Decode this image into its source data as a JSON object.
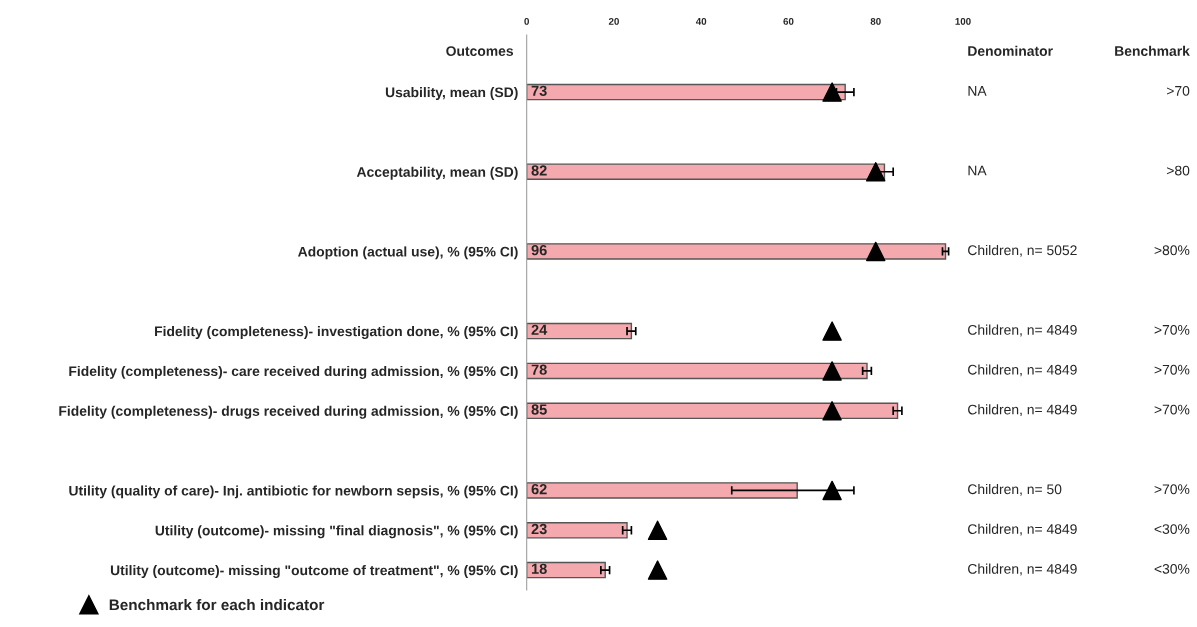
{
  "chart_data": {
    "type": "bar",
    "orientation": "horizontal",
    "ylabel": "Outcomes",
    "categories": [
      "Usability, mean (SD)",
      null,
      "Acceptability, mean (SD)",
      null,
      "Adoption (actual use), % (95% CI)",
      null,
      "Fidelity (completeness)- investigation done, % (95% CI)",
      "Fidelity (completeness)- care received during admission, % (95% CI)",
      "Fidelity (completeness)- drugs received during admission, % (95% CI)",
      null,
      "Utility (quality of care)- Inj. antibiotic for newborn sepsis, % (95% CI)",
      "Utility (outcome)- missing \"final diagnosis\", % (95% CI)",
      "Utility (outcome)- missing \"outcome of treatment\", % (95% CI)"
    ],
    "series": [
      {
        "color": "#f4a9ae",
        "values": [
          73,
          null,
          82,
          null,
          96,
          null,
          24,
          78,
          85,
          null,
          62,
          23,
          18
        ],
        "value_labels": [
          "73",
          null,
          "82",
          null,
          "96",
          null,
          "24",
          "78",
          "85",
          null,
          "62",
          "23",
          "18"
        ],
        "errors": [
          2,
          null,
          2,
          null,
          0.7,
          null,
          1,
          1,
          1,
          null,
          [
            47,
            75
          ],
          1,
          1
        ]
      },
      {
        "type": "scatter",
        "name": "Benchmark for each indicator",
        "color": "#000000",
        "marker": "triangle",
        "values": [
          70,
          null,
          80,
          null,
          80,
          null,
          70,
          70,
          70,
          null,
          70,
          30,
          30
        ]
      }
    ],
    "xlim": [
      0,
      100
    ],
    "xticks": [
      0,
      20,
      40,
      60,
      80,
      100
    ],
    "legend": "bottom left",
    "annotations": [
      "Denominator",
      "Benchmark",
      "NA",
      ">70",
      "NA",
      ">80",
      "Children, n= 5052",
      ">80%",
      "Children, n= 4849",
      ">70%",
      "Children, n= 4849",
      ">70%",
      "Children, n= 4849",
      ">70%",
      "Children, n= 50",
      ">70%",
      "Children, n= 4849",
      "<30%",
      "Children, n= 4849",
      "<30%"
    ]
  }
}
